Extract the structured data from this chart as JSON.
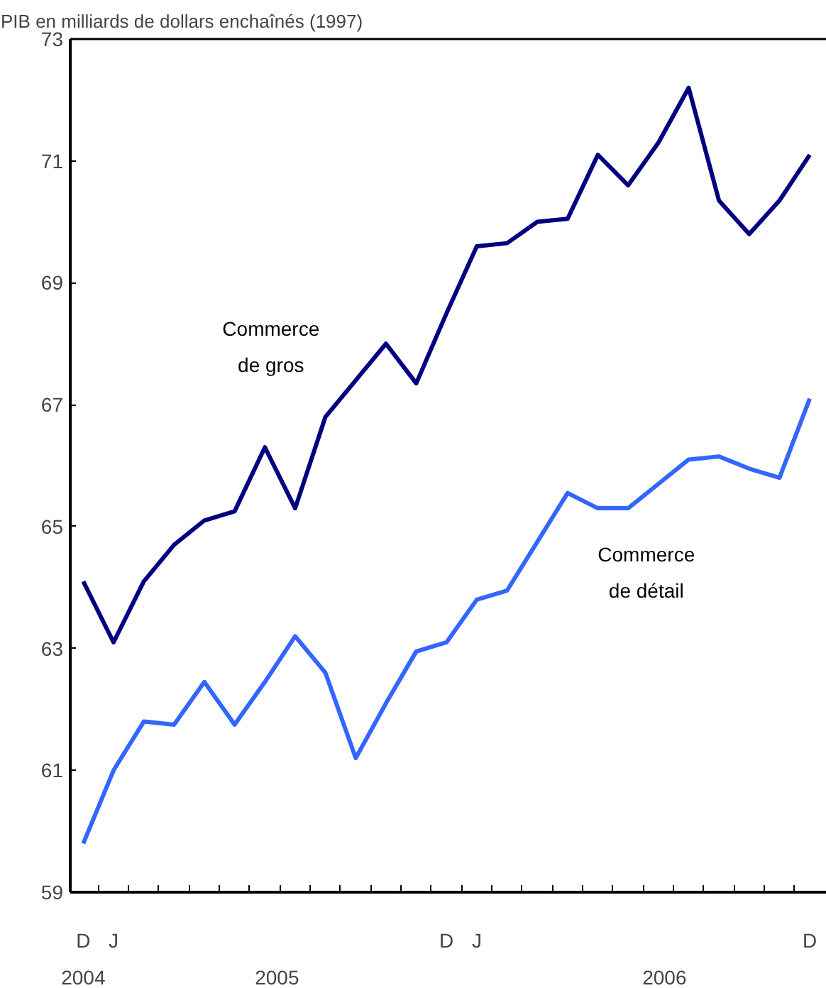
{
  "chart_data": {
    "type": "line",
    "title": "PIB en milliards de dollars enchaînés (1997)",
    "categories": [
      "D",
      "J",
      null,
      null,
      null,
      null,
      null,
      null,
      null,
      null,
      null,
      null,
      "D",
      "J",
      null,
      null,
      null,
      null,
      null,
      null,
      null,
      null,
      null,
      null,
      "D"
    ],
    "series": [
      {
        "name": "Commerce de gros",
        "color": "#000080",
        "values": [
          64.1,
          63.1,
          64.1,
          64.7,
          65.1,
          65.25,
          66.3,
          65.3,
          66.8,
          67.4,
          68.0,
          67.35,
          68.5,
          69.6,
          69.65,
          70.0,
          70.05,
          71.1,
          70.6,
          71.3,
          72.2,
          70.35,
          69.8,
          70.35,
          71.1
        ]
      },
      {
        "name": "Commerce de détail",
        "color": "#3366ff",
        "values": [
          59.8,
          61.0,
          61.8,
          61.75,
          62.45,
          61.75,
          62.45,
          63.2,
          62.6,
          61.2,
          62.1,
          62.95,
          63.1,
          63.8,
          63.95,
          64.75,
          65.55,
          65.3,
          65.3,
          65.7,
          66.1,
          66.15,
          65.95,
          65.8,
          67.1
        ]
      }
    ],
    "annotations": [
      "2004",
      "2005",
      "2006"
    ],
    "ylim": [
      59,
      73
    ],
    "yticks": [
      59,
      61,
      63,
      65,
      67,
      69,
      71,
      73
    ],
    "grid": false,
    "marker": "none",
    "line_style": "solid"
  }
}
